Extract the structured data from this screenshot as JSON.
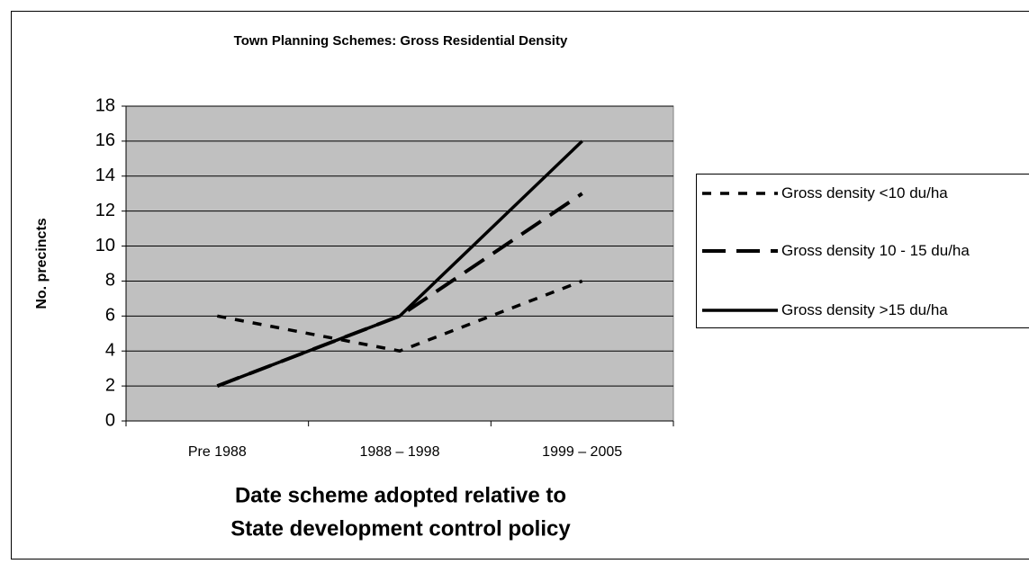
{
  "chart_data": {
    "type": "line",
    "title": "Town Planning Schemes: Gross Residential Density",
    "ylabel": "No. precincts",
    "xlabel": [
      "Date scheme adopted relative to",
      "State development control policy"
    ],
    "categories": [
      "Pre 1988",
      "1988 – 1998",
      "1999 – 2005"
    ],
    "series": [
      {
        "name": "Gross density <10 du/ha",
        "color": "#000000",
        "style": "dotted",
        "values": [
          6,
          4,
          8
        ]
      },
      {
        "name": "Gross density 10 - 15 du/ha",
        "color": "#000000",
        "style": "dashed",
        "values": [
          2,
          6,
          13
        ]
      },
      {
        "name": "Gross density >15 du/ha",
        "color": "#000000",
        "style": "solid",
        "values": [
          2,
          6,
          16
        ]
      }
    ],
    "ylim": [
      0,
      18
    ],
    "yticks": [
      0,
      2,
      4,
      6,
      8,
      10,
      12,
      14,
      16,
      18
    ],
    "grid": true,
    "plot_background": "#c0c0c0",
    "legend": "right"
  }
}
